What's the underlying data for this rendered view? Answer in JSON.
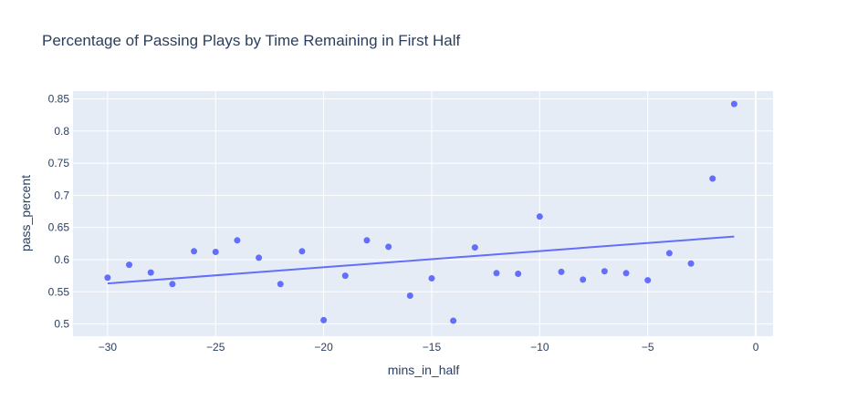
{
  "chart_data": {
    "type": "scatter",
    "title": "Percentage of Passing Plays by Time Remaining in First Half",
    "xlabel": "mins_in_half",
    "ylabel": "pass_percent",
    "xlim": [
      -31.6,
      0.8
    ],
    "ylim": [
      0.481,
      0.862
    ],
    "x_ticks": [
      -30,
      -25,
      -20,
      -15,
      -10,
      -5,
      0
    ],
    "y_ticks": [
      0.5,
      0.55,
      0.6,
      0.65,
      0.7,
      0.75,
      0.8,
      0.85
    ],
    "grid": true,
    "colors": {
      "plot_bg": "#e5ecf6",
      "marker": "#636efa",
      "trendline": "#636efa",
      "text": "#2a3f5f"
    },
    "series": [
      {
        "x": [
          -30,
          -29,
          -28,
          -27,
          -26,
          -25,
          -24,
          -23,
          -22,
          -21,
          -20,
          -19,
          -18,
          -17,
          -16,
          -15,
          -14,
          -13,
          -12,
          -11,
          -10,
          -9,
          -8,
          -7,
          -6,
          -5,
          -4,
          -3,
          -2,
          -1
        ],
        "values": [
          0.572,
          0.592,
          0.58,
          0.562,
          0.613,
          0.612,
          0.63,
          0.603,
          0.562,
          0.613,
          0.506,
          0.575,
          0.63,
          0.62,
          0.544,
          0.571,
          0.505,
          0.619,
          0.579,
          0.578,
          0.667,
          0.581,
          0.569,
          0.582,
          0.579,
          0.568,
          0.61,
          0.594,
          0.726,
          0.842
        ]
      }
    ],
    "trendline": {
      "x": [
        -30,
        -1
      ],
      "values": [
        0.563,
        0.636
      ]
    }
  }
}
